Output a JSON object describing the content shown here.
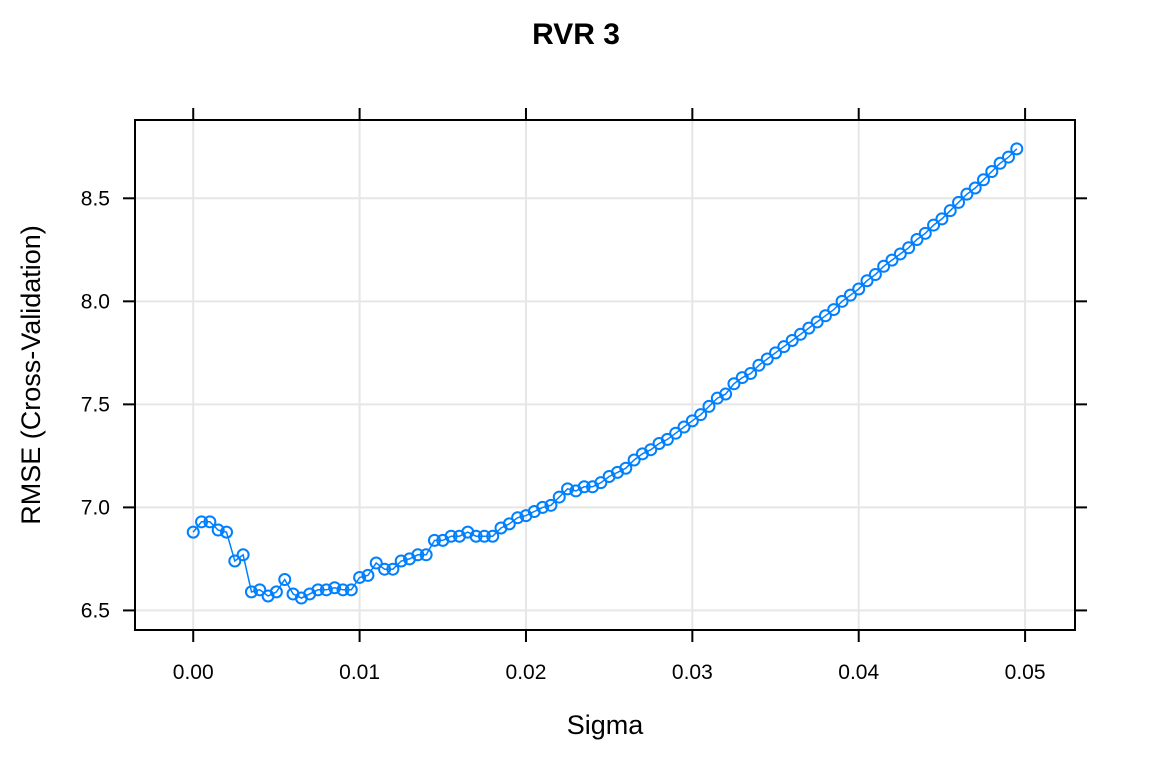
{
  "chart_data": {
    "type": "line",
    "title": "RVR 3",
    "xlabel": "Sigma",
    "ylabel": "RMSE (Cross-Validation)",
    "xlim": [
      -0.0035,
      0.053
    ],
    "ylim": [
      6.405,
      8.88
    ],
    "x_ticks": [
      "0.00",
      "0.01",
      "0.02",
      "0.03",
      "0.04",
      "0.05"
    ],
    "y_ticks": [
      "6.5",
      "7.0",
      "7.5",
      "8.0",
      "8.5"
    ],
    "grid": true,
    "color": "#0080ff",
    "marker": "circle",
    "series": [
      {
        "x": [
          0.0,
          0.0005,
          0.001,
          0.0015,
          0.002,
          0.0025,
          0.003,
          0.0035,
          0.004,
          0.0045,
          0.005,
          0.0055,
          0.006,
          0.0065,
          0.007,
          0.0075,
          0.008,
          0.0085,
          0.009,
          0.0095,
          0.01,
          0.0105,
          0.011,
          0.0115,
          0.012,
          0.0125,
          0.013,
          0.0135,
          0.014,
          0.0145,
          0.015,
          0.0155,
          0.016,
          0.0165,
          0.017,
          0.0175,
          0.018,
          0.0185,
          0.019,
          0.0195,
          0.02,
          0.0205,
          0.021,
          0.0215,
          0.022,
          0.0225,
          0.023,
          0.0235,
          0.024,
          0.0245,
          0.025,
          0.0255,
          0.026,
          0.0265,
          0.027,
          0.0275,
          0.028,
          0.0285,
          0.029,
          0.0295,
          0.03,
          0.0305,
          0.031,
          0.0315,
          0.032,
          0.0325,
          0.033,
          0.0335,
          0.034,
          0.0345,
          0.035,
          0.0355,
          0.036,
          0.0365,
          0.037,
          0.0375,
          0.038,
          0.0385,
          0.039,
          0.0395,
          0.04,
          0.0405,
          0.041,
          0.0415,
          0.042,
          0.0425,
          0.043,
          0.0435,
          0.044,
          0.0445,
          0.045,
          0.0455,
          0.046,
          0.0465,
          0.047,
          0.0475,
          0.048,
          0.0485,
          0.049,
          0.0495
        ],
        "y": [
          6.88,
          6.93,
          6.93,
          6.89,
          6.88,
          6.74,
          6.77,
          6.59,
          6.6,
          6.57,
          6.59,
          6.65,
          6.58,
          6.56,
          6.58,
          6.6,
          6.6,
          6.61,
          6.6,
          6.6,
          6.66,
          6.67,
          6.73,
          6.7,
          6.7,
          6.74,
          6.75,
          6.77,
          6.77,
          6.84,
          6.84,
          6.86,
          6.86,
          6.88,
          6.86,
          6.86,
          6.86,
          6.9,
          6.92,
          6.95,
          6.96,
          6.98,
          7.0,
          7.01,
          7.05,
          7.09,
          7.08,
          7.1,
          7.1,
          7.12,
          7.15,
          7.17,
          7.19,
          7.23,
          7.26,
          7.28,
          7.31,
          7.33,
          7.36,
          7.39,
          7.42,
          7.45,
          7.49,
          7.53,
          7.55,
          7.6,
          7.63,
          7.65,
          7.69,
          7.72,
          7.75,
          7.78,
          7.81,
          7.84,
          7.87,
          7.9,
          7.93,
          7.96,
          8.0,
          8.03,
          8.06,
          8.1,
          8.13,
          8.17,
          8.2,
          8.23,
          8.26,
          8.3,
          8.33,
          8.37,
          8.4,
          8.44,
          8.48,
          8.52,
          8.55,
          8.59,
          8.63,
          8.67,
          8.7,
          8.74
        ]
      }
    ]
  }
}
